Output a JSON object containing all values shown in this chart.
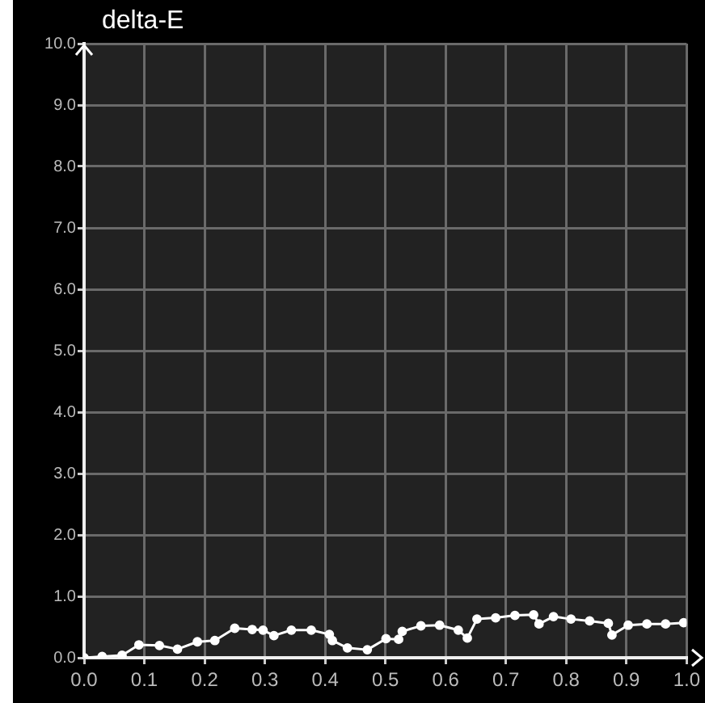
{
  "chart_data": {
    "type": "line",
    "ylabel": "delta-E",
    "series": [
      {
        "color": "#ffffff",
        "x": [
          0,
          0.03,
          0.063,
          0.091,
          0.125,
          0.155,
          0.188,
          0.217,
          0.25,
          0.279,
          0.297,
          0.315,
          0.344,
          0.377,
          0.407,
          0.412,
          0.437,
          0.47,
          0.501,
          0.522,
          0.528,
          0.559,
          0.59,
          0.621,
          0.636,
          0.652,
          0.683,
          0.715,
          0.746,
          0.755,
          0.779,
          0.808,
          0.839,
          0.87,
          0.876,
          0.903,
          0.934,
          0.965,
          0.995
        ],
        "values": [
          0,
          0.02,
          0.04,
          0.21,
          0.2,
          0.14,
          0.26,
          0.28,
          0.48,
          0.46,
          0.45,
          0.36,
          0.45,
          0.45,
          0.38,
          0.28,
          0.16,
          0.13,
          0.31,
          0.3,
          0.43,
          0.52,
          0.53,
          0.45,
          0.32,
          0.63,
          0.65,
          0.69,
          0.7,
          0.55,
          0.67,
          0.63,
          0.6,
          0.56,
          0.37,
          0.53,
          0.55,
          0.55,
          0.57
        ]
      }
    ],
    "xlim": [
      0,
      1
    ],
    "xticks": [
      {
        "value": 0,
        "label": "0.0"
      },
      {
        "value": 0.1,
        "label": "0.1"
      },
      {
        "value": 0.2,
        "label": "0.2"
      },
      {
        "value": 0.3,
        "label": "0.3"
      },
      {
        "value": 0.4,
        "label": "0.4"
      },
      {
        "value": 0.5,
        "label": "0.5"
      },
      {
        "value": 0.6,
        "label": "0.6"
      },
      {
        "value": 0.7,
        "label": "0.7"
      },
      {
        "value": 0.8,
        "label": "0.8"
      },
      {
        "value": 0.9,
        "label": "0.9"
      },
      {
        "value": 1,
        "label": "1.0"
      }
    ],
    "ylim": [
      0,
      10
    ],
    "yticks": [
      {
        "value": 0,
        "label": "0.0"
      },
      {
        "value": 1,
        "label": "1.0"
      },
      {
        "value": 2,
        "label": "2.0"
      },
      {
        "value": 3,
        "label": "3.0"
      },
      {
        "value": 4,
        "label": "4.0"
      },
      {
        "value": 5,
        "label": "5.0"
      },
      {
        "value": 6,
        "label": "6.0"
      },
      {
        "value": 7,
        "label": "7.0"
      },
      {
        "value": 8,
        "label": "8.0"
      },
      {
        "value": 9,
        "label": "9.0"
      },
      {
        "value": 10,
        "label": "10.0"
      }
    ],
    "grid": true,
    "legend": false,
    "marker": "circle",
    "line_style": "solid"
  }
}
